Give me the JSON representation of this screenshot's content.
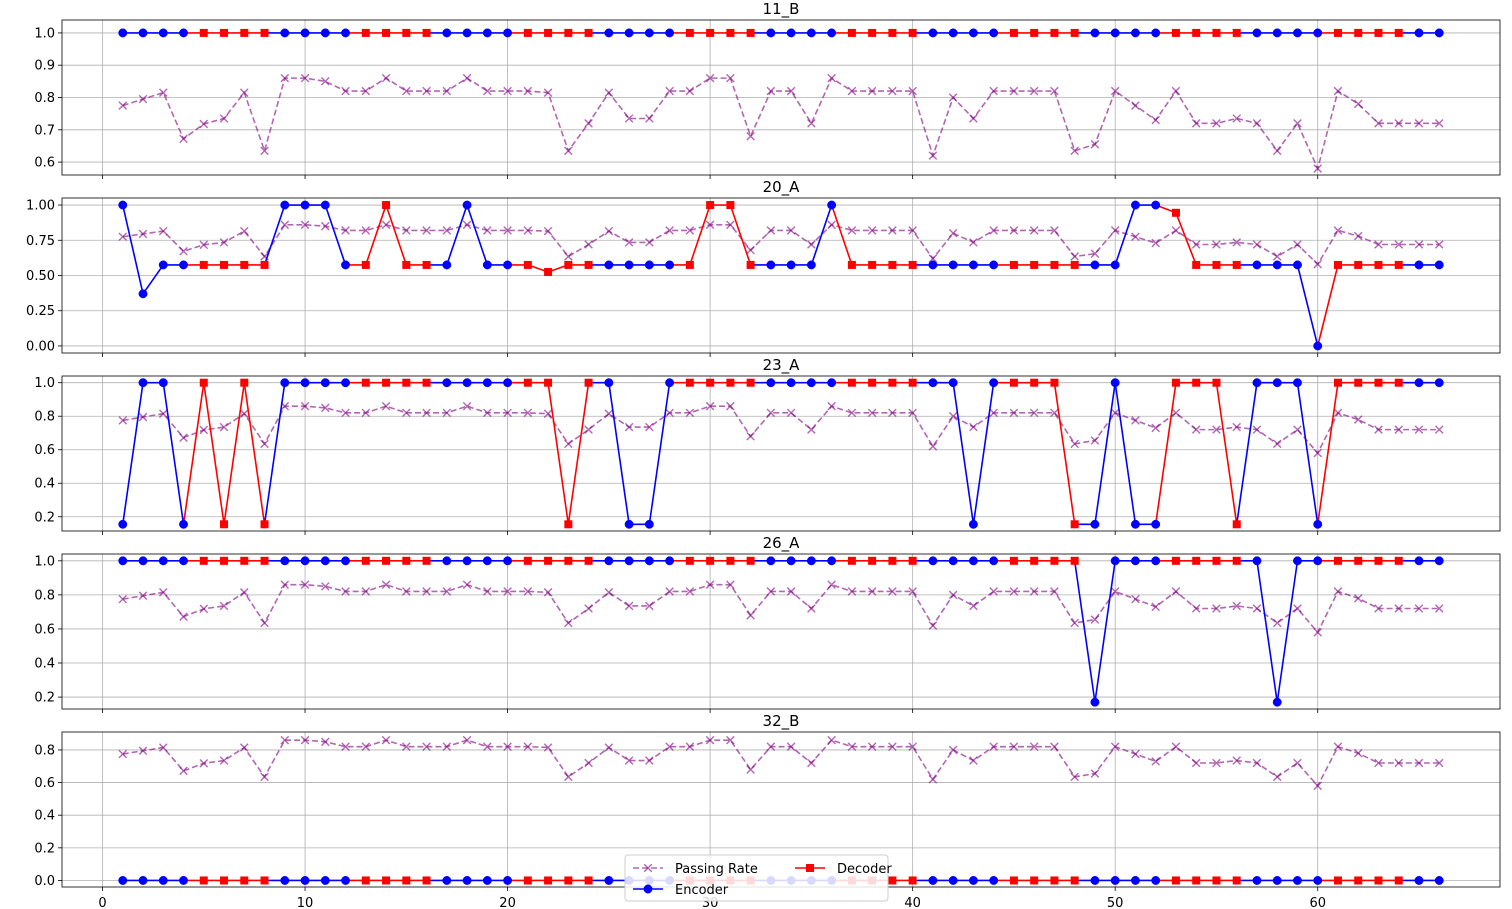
{
  "chart_data": {
    "type": "line",
    "x": [
      1,
      2,
      3,
      4,
      5,
      6,
      7,
      8,
      9,
      10,
      11,
      12,
      13,
      14,
      15,
      16,
      17,
      18,
      19,
      20,
      21,
      22,
      23,
      24,
      25,
      26,
      27,
      28,
      29,
      30,
      31,
      32,
      33,
      34,
      35,
      36,
      37,
      38,
      39,
      40,
      41,
      42,
      43,
      44,
      45,
      46,
      47,
      48,
      49,
      50,
      51,
      52,
      53,
      54,
      55,
      56,
      57,
      58,
      59,
      60,
      61,
      62,
      63,
      64,
      65,
      66
    ],
    "xlim": [
      -2,
      69
    ],
    "xticks": [
      0,
      10,
      20,
      30,
      40,
      50,
      60
    ],
    "grid": true,
    "series_styles": {
      "passing": {
        "color": "#800080",
        "alpha": 0.6,
        "marker": "x",
        "dash": true
      },
      "encoder": {
        "color": "#0000ff",
        "marker": "circle"
      },
      "decoder": {
        "color": "#ff0000",
        "marker": "square"
      }
    },
    "legend": {
      "placement": "lower-center",
      "entries": [
        {
          "key": "passing",
          "label": "Passing Rate"
        },
        {
          "key": "decoder",
          "label": "Decoder"
        },
        {
          "key": "encoder",
          "label": "Encoder"
        }
      ]
    },
    "passing_rate": [
      0.775,
      0.795,
      0.815,
      0.672,
      0.718,
      0.735,
      0.815,
      0.635,
      0.86,
      0.86,
      0.85,
      0.82,
      0.82,
      0.86,
      0.82,
      0.82,
      0.82,
      0.86,
      0.82,
      0.82,
      0.82,
      0.815,
      0.635,
      0.72,
      0.815,
      0.735,
      0.735,
      0.82,
      0.82,
      0.86,
      0.86,
      0.68,
      0.82,
      0.82,
      0.72,
      0.86,
      0.82,
      0.82,
      0.82,
      0.82,
      0.62,
      0.8,
      0.735,
      0.82,
      0.82,
      0.82,
      0.82,
      0.635,
      0.655,
      0.82,
      0.775,
      0.73,
      0.82,
      0.72,
      0.72,
      0.735,
      0.72,
      0.635,
      0.72,
      0.58,
      0.82,
      0.78,
      0.72,
      0.72,
      0.72,
      0.72
    ],
    "component": [
      "E",
      "E",
      "E",
      "E",
      "D",
      "D",
      "D",
      "D",
      "E",
      "E",
      "E",
      "E",
      "D",
      "D",
      "D",
      "D",
      "E",
      "E",
      "E",
      "E",
      "D",
      "D",
      "D",
      "D",
      "E",
      "E",
      "E",
      "E",
      "D",
      "D",
      "D",
      "D",
      "E",
      "E",
      "E",
      "E",
      "D",
      "D",
      "D",
      "D",
      "E",
      "E",
      "E",
      "E",
      "D",
      "D",
      "D",
      "D",
      "E",
      "E",
      "E",
      "E",
      "D",
      "D",
      "D",
      "D",
      "E",
      "E",
      "E",
      "E",
      "D",
      "D",
      "D",
      "D",
      "E",
      "E"
    ],
    "subplots": [
      {
        "title": "11_B",
        "ylim": [
          0.56,
          1.04
        ],
        "yticks": [
          0.6,
          0.7,
          0.8,
          0.9,
          1.0
        ],
        "ytick_labels": [
          "0.6",
          "0.7",
          "0.8",
          "0.9",
          "1.0"
        ],
        "values": [
          1,
          1,
          1,
          1,
          1,
          1,
          1,
          1,
          1,
          1,
          1,
          1,
          1,
          1,
          1,
          1,
          1,
          1,
          1,
          1,
          1,
          1,
          1,
          1,
          1,
          1,
          1,
          1,
          1,
          1,
          1,
          1,
          1,
          1,
          1,
          1,
          1,
          1,
          1,
          1,
          1,
          1,
          1,
          1,
          1,
          1,
          1,
          1,
          1,
          1,
          1,
          1,
          1,
          1,
          1,
          1,
          1,
          1,
          1,
          1,
          1,
          1,
          1,
          1,
          1,
          1
        ]
      },
      {
        "title": "20_A",
        "ylim": [
          -0.05,
          1.05
        ],
        "yticks": [
          0.0,
          0.25,
          0.5,
          0.75,
          1.0
        ],
        "ytick_labels": [
          "0.00",
          "0.25",
          "0.50",
          "0.75",
          "1.00"
        ],
        "values": [
          1.0,
          0.37,
          0.575,
          0.575,
          0.575,
          0.575,
          0.575,
          0.575,
          1.0,
          1.0,
          1.0,
          0.575,
          0.575,
          1.0,
          0.575,
          0.575,
          0.575,
          1.0,
          0.575,
          0.575,
          0.575,
          0.525,
          0.575,
          0.575,
          0.575,
          0.575,
          0.575,
          0.575,
          0.575,
          1.0,
          1.0,
          0.575,
          0.575,
          0.575,
          0.575,
          1.0,
          0.575,
          0.575,
          0.575,
          0.575,
          0.575,
          0.575,
          0.575,
          0.575,
          0.575,
          0.575,
          0.575,
          0.575,
          0.575,
          0.575,
          1.0,
          1.0,
          0.945,
          0.575,
          0.575,
          0.575,
          0.575,
          0.575,
          0.575,
          0.0,
          0.575,
          0.575,
          0.575,
          0.575,
          0.575,
          0.575
        ]
      },
      {
        "title": "23_A",
        "ylim": [
          0.115,
          1.04
        ],
        "yticks": [
          0.2,
          0.4,
          0.6,
          0.8,
          1.0
        ],
        "ytick_labels": [
          "0.2",
          "0.4",
          "0.6",
          "0.8",
          "1.0"
        ],
        "values": [
          0.155,
          1,
          1,
          0.155,
          1,
          0.155,
          1,
          0.155,
          1,
          1,
          1,
          1,
          1,
          1,
          1,
          1,
          1,
          1,
          1,
          1,
          1,
          1,
          0.155,
          1,
          1,
          0.155,
          0.155,
          1,
          1,
          1,
          1,
          1,
          1,
          1,
          1,
          1,
          1,
          1,
          1,
          1,
          1,
          1,
          0.155,
          1,
          1,
          1,
          1,
          0.155,
          0.155,
          1,
          0.155,
          0.155,
          1,
          1,
          1,
          0.155,
          1,
          1,
          1,
          0.155,
          1,
          1,
          1,
          1,
          1,
          1
        ]
      },
      {
        "title": "26_A",
        "ylim": [
          0.13,
          1.04
        ],
        "yticks": [
          0.2,
          0.4,
          0.6,
          0.8,
          1.0
        ],
        "ytick_labels": [
          "0.2",
          "0.4",
          "0.6",
          "0.8",
          "1.0"
        ],
        "values": [
          1,
          1,
          1,
          1,
          1,
          1,
          1,
          1,
          1,
          1,
          1,
          1,
          1,
          1,
          1,
          1,
          1,
          1,
          1,
          1,
          1,
          1,
          1,
          1,
          1,
          1,
          1,
          1,
          1,
          1,
          1,
          1,
          1,
          1,
          1,
          1,
          1,
          1,
          1,
          1,
          1,
          1,
          1,
          1,
          1,
          1,
          1,
          1,
          0.17,
          1,
          1,
          1,
          1,
          1,
          1,
          1,
          1,
          0.17,
          1,
          1,
          1,
          1,
          1,
          1,
          1,
          1
        ]
      },
      {
        "title": "32_B",
        "ylim": [
          -0.04,
          0.91
        ],
        "yticks": [
          0.0,
          0.2,
          0.4,
          0.6,
          0.8
        ],
        "ytick_labels": [
          "0.0",
          "0.2",
          "0.4",
          "0.6",
          "0.8"
        ],
        "values": [
          0,
          0,
          0,
          0,
          0,
          0,
          0,
          0,
          0,
          0,
          0,
          0,
          0,
          0,
          0,
          0,
          0,
          0,
          0,
          0,
          0,
          0,
          0,
          0,
          0,
          0,
          0,
          0,
          0,
          0,
          0,
          0,
          0,
          0,
          0,
          0,
          0,
          0,
          0,
          0,
          0,
          0,
          0,
          0,
          0,
          0,
          0,
          0,
          0,
          0,
          0,
          0,
          0,
          0,
          0,
          0,
          0,
          0,
          0,
          0,
          0,
          0,
          0,
          0,
          0,
          0
        ]
      }
    ]
  }
}
